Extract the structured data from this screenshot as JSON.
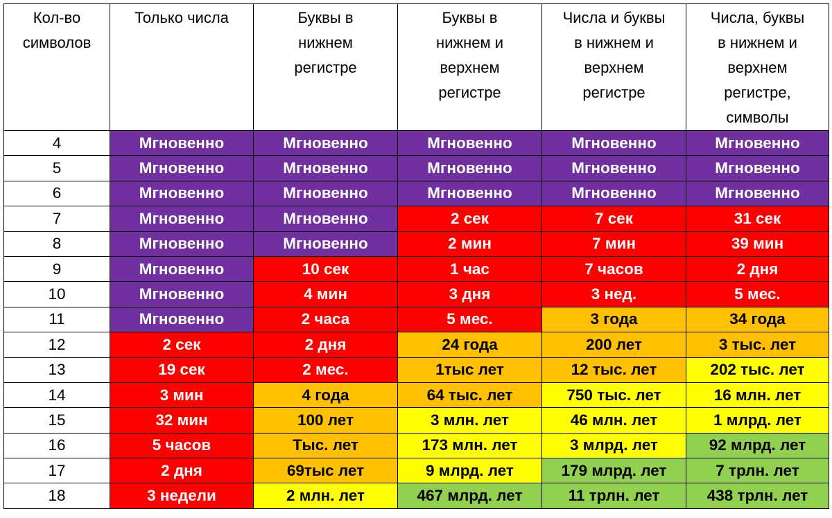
{
  "headers": [
    [
      "Кол-во",
      "символов"
    ],
    [
      "Только числа"
    ],
    [
      "Буквы в",
      "нижнем",
      "регистре"
    ],
    [
      "Буквы в",
      "нижнем и",
      "верхнем",
      "регистре"
    ],
    [
      "Числа и буквы",
      "в нижнем и",
      "верхнем",
      "регистре"
    ],
    [
      "Числа, буквы",
      "в нижнем и",
      "верхнем",
      "регистре,",
      "символы"
    ]
  ],
  "colors": {
    "purple": "#7030a0",
    "red": "#ff0000",
    "orange": "#ffc000",
    "yellow": "#ffff00",
    "green": "#92d050"
  },
  "rows": [
    {
      "n": "4",
      "cells": [
        [
          "Мгновенно",
          "purple"
        ],
        [
          "Мгновенно",
          "purple"
        ],
        [
          "Мгновенно",
          "purple"
        ],
        [
          "Мгновенно",
          "purple"
        ],
        [
          "Мгновенно",
          "purple"
        ]
      ]
    },
    {
      "n": "5",
      "cells": [
        [
          "Мгновенно",
          "purple"
        ],
        [
          "Мгновенно",
          "purple"
        ],
        [
          "Мгновенно",
          "purple"
        ],
        [
          "Мгновенно",
          "purple"
        ],
        [
          "Мгновенно",
          "purple"
        ]
      ]
    },
    {
      "n": "6",
      "cells": [
        [
          "Мгновенно",
          "purple"
        ],
        [
          "Мгновенно",
          "purple"
        ],
        [
          "Мгновенно",
          "purple"
        ],
        [
          "Мгновенно",
          "purple"
        ],
        [
          "Мгновенно",
          "purple"
        ]
      ]
    },
    {
      "n": "7",
      "cells": [
        [
          "Мгновенно",
          "purple"
        ],
        [
          "Мгновенно",
          "purple"
        ],
        [
          "2 сек",
          "red"
        ],
        [
          "7 сек",
          "red"
        ],
        [
          "31 сек",
          "red"
        ]
      ]
    },
    {
      "n": "8",
      "cells": [
        [
          "Мгновенно",
          "purple"
        ],
        [
          "Мгновенно",
          "purple"
        ],
        [
          "2 мин",
          "red"
        ],
        [
          "7 мин",
          "red"
        ],
        [
          "39 мин",
          "red"
        ]
      ]
    },
    {
      "n": "9",
      "cells": [
        [
          "Мгновенно",
          "purple"
        ],
        [
          "10 сек",
          "red"
        ],
        [
          "1 час",
          "red"
        ],
        [
          "7 часов",
          "red"
        ],
        [
          "2 дня",
          "red"
        ]
      ]
    },
    {
      "n": "10",
      "cells": [
        [
          "Мгновенно",
          "purple"
        ],
        [
          "4 мин",
          "red"
        ],
        [
          "3 дня",
          "red"
        ],
        [
          "3 нед.",
          "red"
        ],
        [
          "5 мес.",
          "red"
        ]
      ]
    },
    {
      "n": "11",
      "cells": [
        [
          "Мгновенно",
          "purple"
        ],
        [
          "2 часа",
          "red"
        ],
        [
          "5 мес.",
          "red"
        ],
        [
          "3 года",
          "orange"
        ],
        [
          "34 года",
          "orange"
        ]
      ]
    },
    {
      "n": "12",
      "cells": [
        [
          "2 сек",
          "red"
        ],
        [
          "2 дня",
          "red"
        ],
        [
          "24 года",
          "orange"
        ],
        [
          "200 лет",
          "orange"
        ],
        [
          "3 тыс. лет",
          "orange"
        ]
      ]
    },
    {
      "n": "13",
      "cells": [
        [
          "19 сек",
          "red"
        ],
        [
          "2 мес.",
          "red"
        ],
        [
          "1тыс лет",
          "orange"
        ],
        [
          "12 тыс. лет",
          "orange"
        ],
        [
          "202 тыс. лет",
          "yellow"
        ]
      ]
    },
    {
      "n": "14",
      "cells": [
        [
          "3 мин",
          "red"
        ],
        [
          "4 года",
          "orange"
        ],
        [
          "64 тыс. лет",
          "orange"
        ],
        [
          "750 тыс. лет",
          "yellow"
        ],
        [
          "16 млн. лет",
          "yellow"
        ]
      ]
    },
    {
      "n": "15",
      "cells": [
        [
          "32 мин",
          "red"
        ],
        [
          "100 лет",
          "orange"
        ],
        [
          "3 млн. лет",
          "yellow"
        ],
        [
          "46 млн. лет",
          "yellow"
        ],
        [
          "1 млрд. лет",
          "yellow"
        ]
      ]
    },
    {
      "n": "16",
      "cells": [
        [
          "5 часов",
          "red"
        ],
        [
          "Тыс. лет",
          "orange"
        ],
        [
          "173 млн. лет",
          "yellow"
        ],
        [
          "3 млрд. лет",
          "yellow"
        ],
        [
          "92 млрд. лет",
          "green"
        ]
      ]
    },
    {
      "n": "17",
      "cells": [
        [
          "2 дня",
          "red"
        ],
        [
          "69тыс лет",
          "orange"
        ],
        [
          "9 млрд. лет",
          "yellow"
        ],
        [
          "179 млрд. лет",
          "green"
        ],
        [
          "7 трлн. лет",
          "green"
        ]
      ]
    },
    {
      "n": "18",
      "cells": [
        [
          "3 недели",
          "red"
        ],
        [
          "2 млн. лет",
          "yellow"
        ],
        [
          "467 млрд. лет",
          "green"
        ],
        [
          "11 трлн. лет",
          "green"
        ],
        [
          "438 трлн. лет",
          "green"
        ]
      ]
    }
  ]
}
